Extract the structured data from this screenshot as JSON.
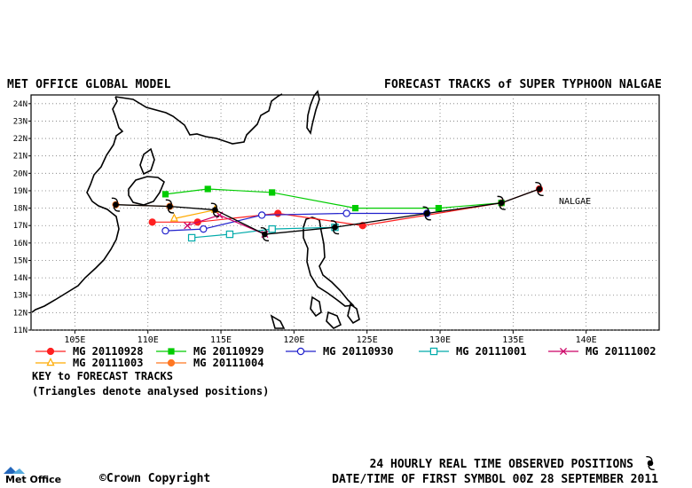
{
  "header": {
    "left_title": "MET OFFICE GLOBAL MODEL",
    "right_title": "FORECAST TRACKS of SUPER TYPHOON NALGAE"
  },
  "map": {
    "lon_range": [
      102,
      145
    ],
    "lat_range": [
      11,
      24.5
    ],
    "lon_ticks": [
      "105E",
      "110E",
      "115E",
      "120E",
      "125E",
      "130E",
      "135E",
      "140E"
    ],
    "lat_ticks": [
      "11N",
      "12N",
      "13N",
      "14N",
      "15N",
      "16N",
      "17N",
      "18N",
      "19N",
      "20N",
      "21N",
      "22N",
      "23N",
      "24N"
    ],
    "grid": true,
    "storm_label": "NALGAE"
  },
  "observed_track": [
    [
      136.8,
      19.1
    ],
    [
      134.2,
      18.3
    ],
    [
      129.1,
      17.7
    ],
    [
      122.8,
      16.9
    ],
    [
      118.0,
      16.5
    ],
    [
      114.6,
      17.9
    ],
    [
      111.5,
      18.1
    ],
    [
      107.8,
      18.2
    ]
  ],
  "tracks": [
    {
      "name": "MG 20110928",
      "color": "#ff2020",
      "marker": "filled-circle",
      "points": [
        [
          136.8,
          19.1
        ],
        [
          134.2,
          18.3
        ],
        [
          124.7,
          17.0
        ],
        [
          118.9,
          17.7
        ],
        [
          113.4,
          17.2
        ],
        [
          110.3,
          17.2
        ]
      ]
    },
    {
      "name": "MG 20110929",
      "color": "#00cc00",
      "marker": "filled-square",
      "points": [
        [
          134.2,
          18.3
        ],
        [
          129.9,
          18.0
        ],
        [
          124.2,
          18.0
        ],
        [
          118.5,
          18.9
        ],
        [
          114.1,
          19.1
        ],
        [
          111.2,
          18.8
        ]
      ]
    },
    {
      "name": "MG 20110930",
      "color": "#2020cc",
      "marker": "open-circle",
      "points": [
        [
          129.1,
          17.7
        ],
        [
          123.6,
          17.7
        ],
        [
          117.8,
          17.6
        ],
        [
          113.8,
          16.8
        ],
        [
          111.2,
          16.7
        ]
      ]
    },
    {
      "name": "MG 20111001",
      "color": "#00aaaa",
      "marker": "open-square",
      "points": [
        [
          122.8,
          16.9
        ],
        [
          118.5,
          16.8
        ],
        [
          115.6,
          16.5
        ],
        [
          113.0,
          16.3
        ]
      ]
    },
    {
      "name": "MG 20111002",
      "color": "#cc0066",
      "marker": "x",
      "points": [
        [
          118.0,
          16.5
        ],
        [
          114.9,
          17.6
        ],
        [
          112.7,
          17.0
        ]
      ]
    },
    {
      "name": "MG 20111003",
      "color": "#ffaa00",
      "marker": "open-triangle",
      "points": [
        [
          114.6,
          17.9
        ],
        [
          111.8,
          17.4
        ]
      ]
    },
    {
      "name": "MG 20111004",
      "color": "#ff7722",
      "marker": "filled-circle",
      "points": [
        [
          111.5,
          18.1
        ],
        [
          107.8,
          18.2
        ]
      ]
    }
  ],
  "key": {
    "line1": "KEY to FORECAST TRACKS",
    "line2": "(Triangles denote analysed positions)"
  },
  "footer": {
    "logo_text": "Met Office",
    "copyright": "Crown Copyright",
    "observed_note": "24 HOURLY REAL TIME OBSERVED POSITIONS",
    "first_symbol": "DATE/TIME OF FIRST SYMBOL 00Z 28 SEPTEMBER 2011"
  }
}
